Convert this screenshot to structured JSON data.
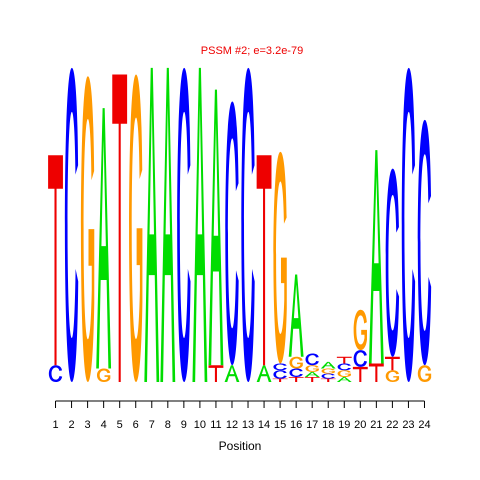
{
  "chart_data": {
    "type": "sequence-logo",
    "title": "PSSM #2; e=3.2e-79",
    "xlabel": "Position",
    "ylabel": "",
    "x": [
      1,
      2,
      3,
      4,
      5,
      6,
      7,
      8,
      9,
      10,
      11,
      12,
      13,
      14,
      15,
      16,
      17,
      18,
      19,
      20,
      21,
      22,
      23,
      24
    ],
    "ylim": [
      0,
      2
    ],
    "colors": {
      "A": "#00dd00",
      "C": "#0000ff",
      "G": "#ff9900",
      "T": "#ee0000"
    },
    "positions": [
      {
        "position": 1,
        "letters": [
          {
            "base": "C",
            "height": 0.1
          },
          {
            "base": "T",
            "height": 1.25
          }
        ]
      },
      {
        "position": 2,
        "letters": [
          {
            "base": "C",
            "height": 1.87
          }
        ]
      },
      {
        "position": 3,
        "letters": [
          {
            "base": "G",
            "height": 1.82
          }
        ]
      },
      {
        "position": 4,
        "letters": [
          {
            "base": "G",
            "height": 0.08
          },
          {
            "base": "A",
            "height": 1.55
          }
        ]
      },
      {
        "position": 5,
        "letters": [
          {
            "base": "T",
            "height": 1.83
          }
        ]
      },
      {
        "position": 6,
        "letters": [
          {
            "base": "G",
            "height": 1.83
          }
        ]
      },
      {
        "position": 7,
        "letters": [
          {
            "base": "A",
            "height": 1.87
          }
        ]
      },
      {
        "position": 8,
        "letters": [
          {
            "base": "A",
            "height": 1.87
          }
        ]
      },
      {
        "position": 9,
        "letters": [
          {
            "base": "C",
            "height": 1.87
          }
        ]
      },
      {
        "position": 10,
        "letters": [
          {
            "base": "A",
            "height": 1.87
          }
        ]
      },
      {
        "position": 11,
        "letters": [
          {
            "base": "T",
            "height": 0.1
          },
          {
            "base": "A",
            "height": 1.64
          }
        ]
      },
      {
        "position": 12,
        "letters": [
          {
            "base": "A",
            "height": 0.1
          },
          {
            "base": "C",
            "height": 1.57
          }
        ]
      },
      {
        "position": 13,
        "letters": [
          {
            "base": "C",
            "height": 1.87
          }
        ]
      },
      {
        "position": 14,
        "letters": [
          {
            "base": "A",
            "height": 0.1
          },
          {
            "base": "T",
            "height": 1.25
          }
        ]
      },
      {
        "position": 15,
        "letters": [
          {
            "base": "T",
            "height": 0.02
          },
          {
            "base": "C",
            "height": 0.05
          },
          {
            "base": "C",
            "height": 0.04
          },
          {
            "base": "G",
            "height": 1.26
          }
        ]
      },
      {
        "position": 16,
        "letters": [
          {
            "base": "T",
            "height": 0.03
          },
          {
            "base": "C",
            "height": 0.05
          },
          {
            "base": "G",
            "height": 0.07
          },
          {
            "base": "A",
            "height": 0.49
          }
        ]
      },
      {
        "position": 17,
        "letters": [
          {
            "base": "T",
            "height": 0.03
          },
          {
            "base": "A",
            "height": 0.03
          },
          {
            "base": "G",
            "height": 0.04
          },
          {
            "base": "C",
            "height": 0.07
          }
        ]
      },
      {
        "position": 18,
        "letters": [
          {
            "base": "T",
            "height": 0.02
          },
          {
            "base": "C",
            "height": 0.03
          },
          {
            "base": "G",
            "height": 0.03
          },
          {
            "base": "A",
            "height": 0.04
          }
        ]
      },
      {
        "position": 19,
        "letters": [
          {
            "base": "A",
            "height": 0.03
          },
          {
            "base": "G",
            "height": 0.04
          },
          {
            "base": "C",
            "height": 0.04
          },
          {
            "base": "T",
            "height": 0.04
          }
        ]
      },
      {
        "position": 20,
        "letters": [
          {
            "base": "T",
            "height": 0.09
          },
          {
            "base": "C",
            "height": 0.1
          },
          {
            "base": "G",
            "height": 0.24
          }
        ]
      },
      {
        "position": 21,
        "letters": [
          {
            "base": "T",
            "height": 0.11
          },
          {
            "base": "A",
            "height": 1.27
          }
        ]
      },
      {
        "position": 22,
        "letters": [
          {
            "base": "G",
            "height": 0.07
          },
          {
            "base": "T",
            "height": 0.08
          },
          {
            "base": "C",
            "height": 1.12
          }
        ]
      },
      {
        "position": 23,
        "letters": [
          {
            "base": "C",
            "height": 1.87
          }
        ]
      },
      {
        "position": 24,
        "letters": [
          {
            "base": "G",
            "height": 0.1
          },
          {
            "base": "C",
            "height": 1.46
          }
        ]
      }
    ]
  }
}
